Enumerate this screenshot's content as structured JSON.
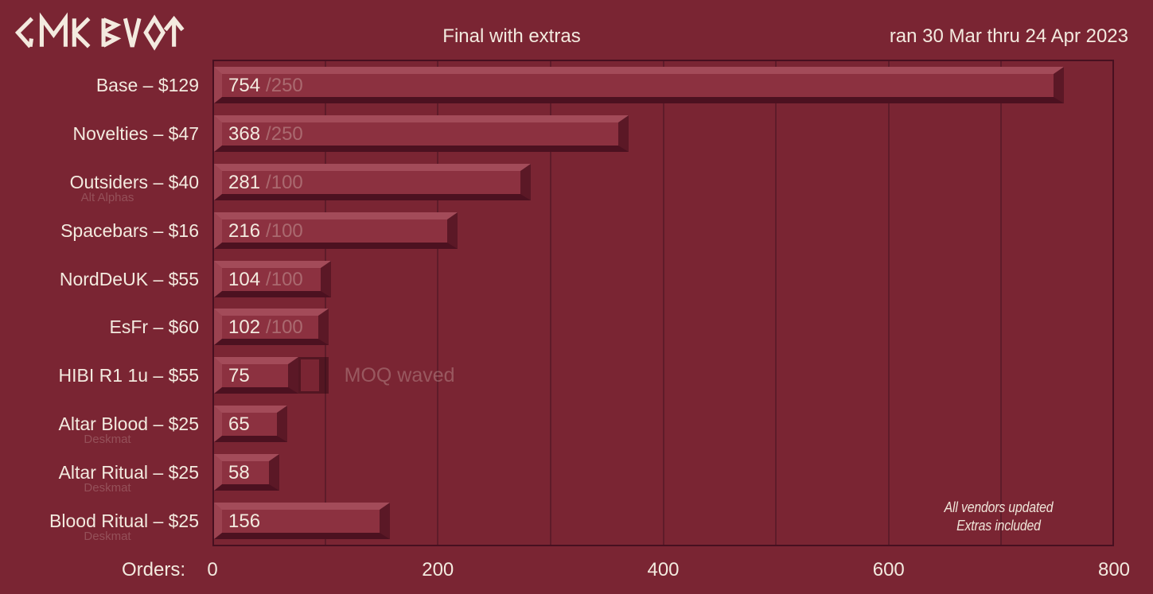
{
  "header": {
    "logo_text": "GMK BLOT"
  },
  "chart_data": {
    "type": "bar",
    "orientation": "horizontal",
    "title": "Final with extras",
    "subtitle": "ran 30 Mar thru 24 Apr 2023",
    "xlabel": "Orders:",
    "xlim": [
      0,
      800
    ],
    "x_ticks": [
      0,
      200,
      400,
      600,
      800
    ],
    "gridline_step": 100,
    "grid": true,
    "legend": false,
    "moq_annotation": "MOQ waved",
    "notes": [
      "All vendors updated",
      "Extras included"
    ],
    "rows": [
      {
        "label": "Base – $129",
        "sublabel": null,
        "value": 754,
        "moq": 250,
        "show_moq": true,
        "moq_waved": false
      },
      {
        "label": "Novelties – $47",
        "sublabel": null,
        "value": 368,
        "moq": 250,
        "show_moq": true,
        "moq_waved": false
      },
      {
        "label": "Outsiders – $40",
        "sublabel": "Alt Alphas",
        "value": 281,
        "moq": 100,
        "show_moq": true,
        "moq_waved": false
      },
      {
        "label": "Spacebars – $16",
        "sublabel": null,
        "value": 216,
        "moq": 100,
        "show_moq": true,
        "moq_waved": false
      },
      {
        "label": "NordDeUK – $55",
        "sublabel": null,
        "value": 104,
        "moq": 100,
        "show_moq": true,
        "moq_waved": false
      },
      {
        "label": "EsFr – $60",
        "sublabel": null,
        "value": 102,
        "moq": 100,
        "show_moq": true,
        "moq_waved": false
      },
      {
        "label": "HIBI R1 1u  – $55",
        "sublabel": null,
        "value": 75,
        "moq": 100,
        "show_moq": false,
        "moq_waved": true
      },
      {
        "label": "Altar Blood – $25",
        "sublabel": "Deskmat",
        "value": 65,
        "moq": null,
        "show_moq": false,
        "moq_waved": false
      },
      {
        "label": "Altar Ritual – $25",
        "sublabel": "Deskmat",
        "value": 58,
        "moq": null,
        "show_moq": false,
        "moq_waved": false
      },
      {
        "label": "Blood Ritual – $25",
        "sublabel": "Deskmat",
        "value": 156,
        "moq": null,
        "show_moq": false,
        "moq_waved": false
      }
    ]
  },
  "colors": {
    "background": "#7A2533",
    "bar_face": "#8C3140",
    "bevel_top": "#A34B59",
    "bevel_left": "#9B4250",
    "bevel_bottom": "#4C1120",
    "bevel_right": "#5B1826",
    "gridline": "#5E1C2A",
    "plot_border": "#471020",
    "text_cream": "#F3EADF",
    "text_faint": "rgba(243,234,223,0.30)",
    "text_sublabel": "rgba(243,234,223,0.22)",
    "text_annotation": "rgba(243,234,223,0.26)",
    "ghost_outline": "rgba(44,7,17,0.50)",
    "notes_text": "#EFE5D9"
  }
}
